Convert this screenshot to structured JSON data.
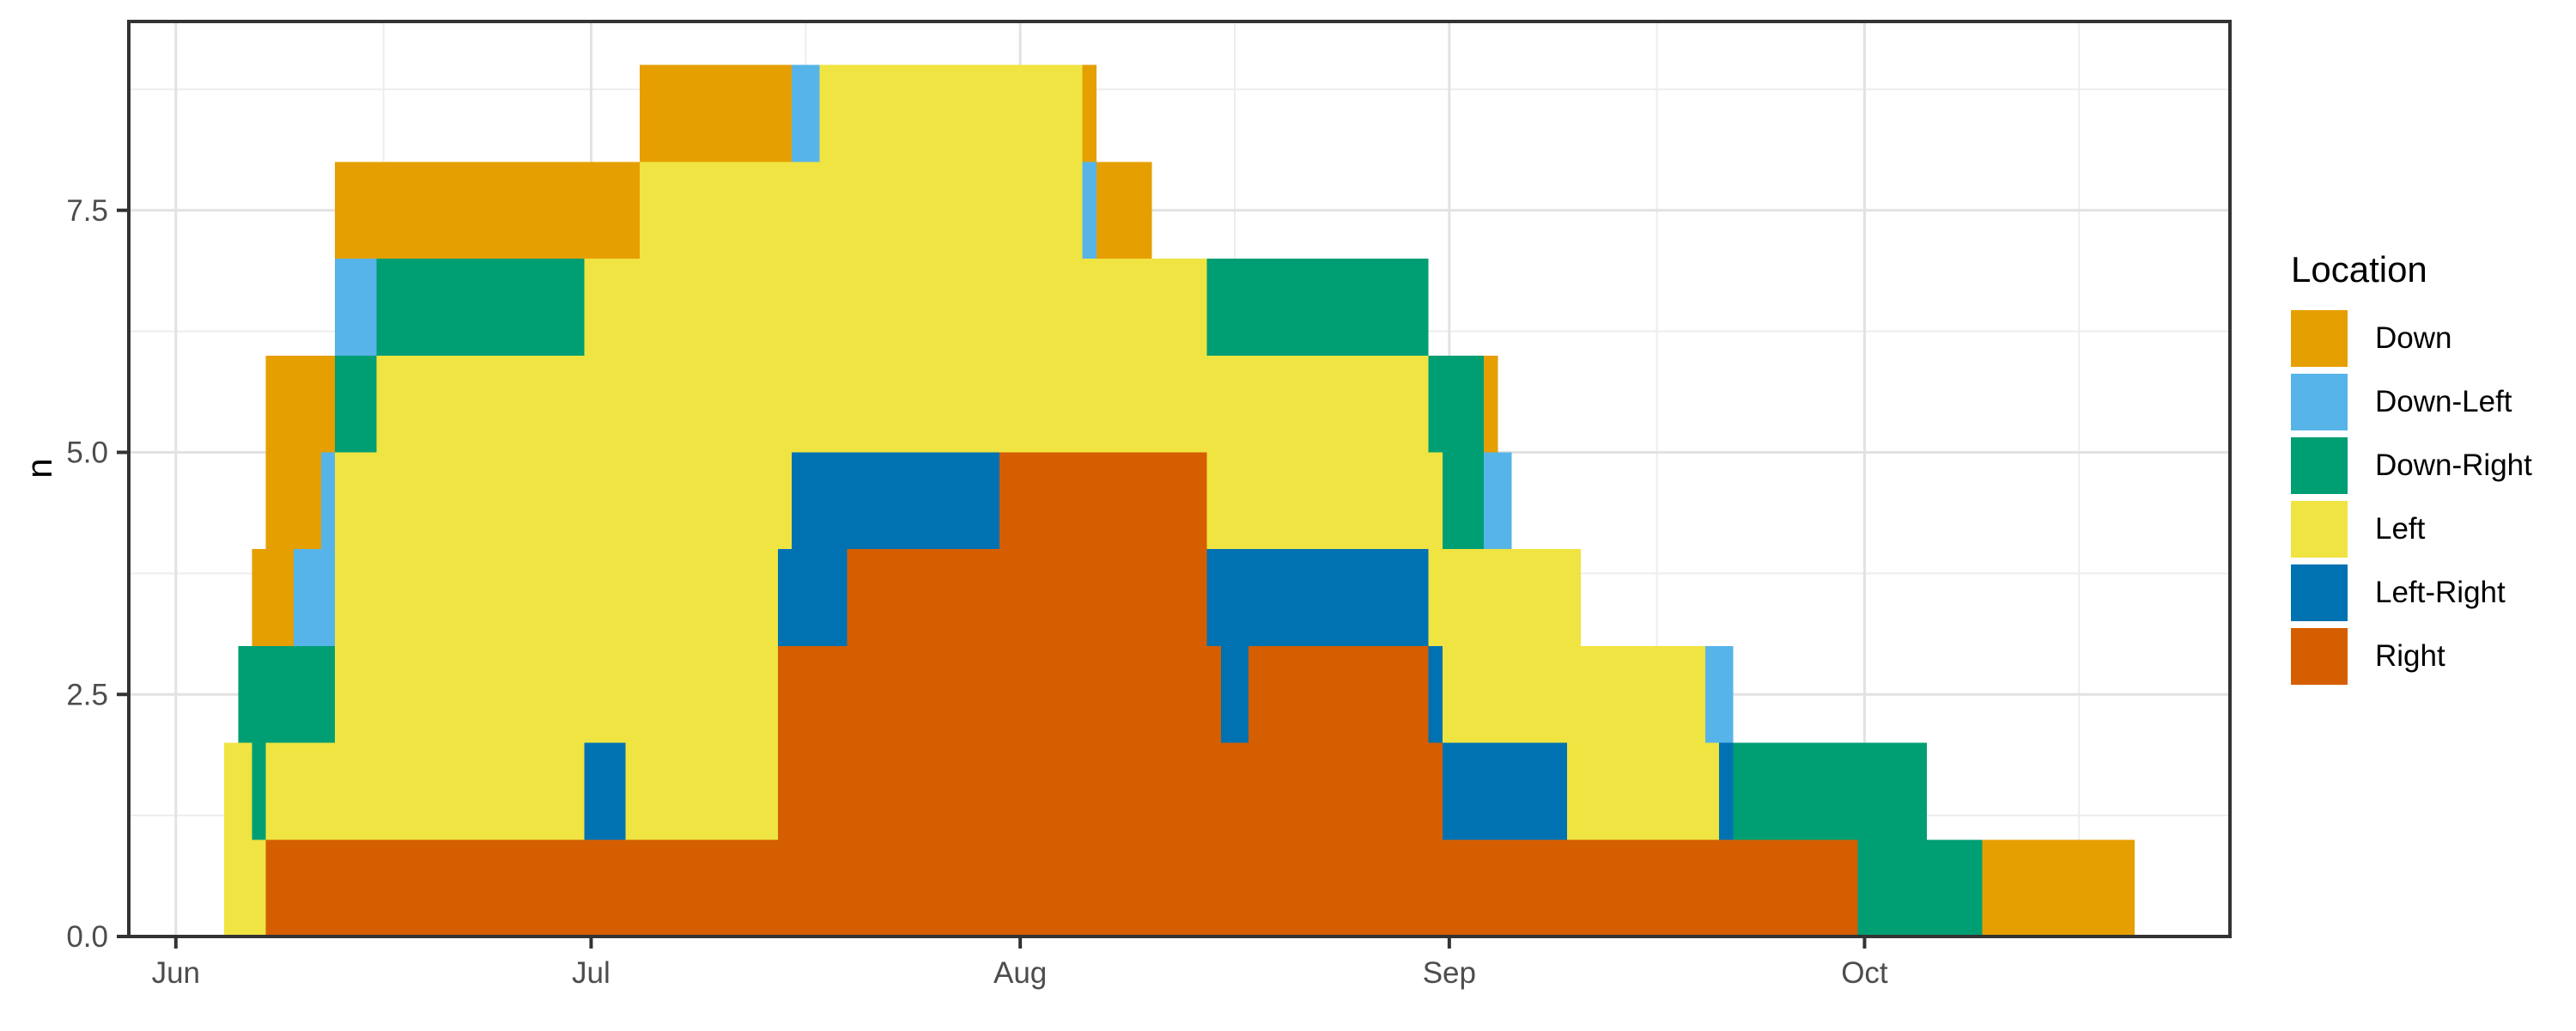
{
  "chart_data": {
    "type": "bar",
    "subtype": "stacked-time-columns",
    "title": "",
    "xlabel": "",
    "ylabel": "n",
    "legend_title": "Location",
    "legend_position": "right",
    "grid": true,
    "categories_legend_order": [
      "Down",
      "Down-Left",
      "Down-Right",
      "Left",
      "Left-Right",
      "Right"
    ],
    "stack_order_bottom_to_top": [
      "Right",
      "Left-Right",
      "Left",
      "Down-Right",
      "Down-Left",
      "Down"
    ],
    "colors": {
      "Down": "#E69F00",
      "Down-Left": "#56B4E9",
      "Down-Right": "#009E73",
      "Left": "#F0E442",
      "Left-Right": "#0072B2",
      "Right": "#D55E00"
    },
    "axis_text_color": "#4D4D4D",
    "axis_title_color": "#000000",
    "grid_major_color": "#E2E2E2",
    "grid_minor_color": "#EDEDED",
    "panel_border_color": "#333333",
    "panel_background": "#FFFFFF",
    "y_domain": [
      0,
      9.45
    ],
    "y_major_ticks": [
      {
        "value": 0,
        "label": "0.0"
      },
      {
        "value": 2.5,
        "label": "2.5"
      },
      {
        "value": 5,
        "label": "5.0"
      },
      {
        "value": 7.5,
        "label": "7.5"
      }
    ],
    "y_minor_breaks": [
      1.25,
      3.75,
      6.25,
      8.75
    ],
    "x_unit": "days_since_jun_1",
    "x_domain": [
      -3.4,
      148.4
    ],
    "x_major_ticks": [
      {
        "day": 0,
        "label": "Jun"
      },
      {
        "day": 30,
        "label": "Jul"
      },
      {
        "day": 61,
        "label": "Aug"
      },
      {
        "day": 92,
        "label": "Sep"
      },
      {
        "day": 122,
        "label": "Oct"
      }
    ],
    "x_minor_breaks": [
      15,
      45.5,
      76.5,
      107,
      137.5
    ],
    "segment_columns": [
      "start_day",
      "end_day",
      "Right",
      "Left-Right",
      "Left",
      "Down-Right",
      "Down-Left",
      "Down"
    ],
    "segments": [
      [
        3.5,
        4.5,
        0,
        0,
        2,
        0,
        0,
        0
      ],
      [
        4.5,
        5.5,
        0,
        0,
        2,
        1,
        0,
        0
      ],
      [
        5.5,
        6.5,
        0,
        0,
        1,
        2,
        0,
        1
      ],
      [
        6.5,
        8.5,
        1,
        0,
        1,
        1,
        0,
        3
      ],
      [
        8.5,
        10.5,
        1,
        0,
        1,
        1,
        1,
        2
      ],
      [
        10.5,
        11.5,
        1,
        0,
        1,
        1,
        2,
        1
      ],
      [
        11.5,
        14.5,
        1,
        0,
        4,
        1,
        1,
        1
      ],
      [
        14.5,
        29.5,
        1,
        0,
        5,
        1,
        0,
        1
      ],
      [
        29.5,
        32.5,
        1,
        1,
        5,
        0,
        0,
        1
      ],
      [
        32.5,
        33.5,
        1,
        0,
        6,
        0,
        0,
        1
      ],
      [
        33.5,
        43.5,
        1,
        0,
        7,
        0,
        0,
        1
      ],
      [
        43.5,
        44.5,
        3,
        1,
        4,
        0,
        0,
        1
      ],
      [
        44.5,
        46.5,
        3,
        2,
        3,
        0,
        1,
        0
      ],
      [
        46.5,
        48.5,
        3,
        2,
        4,
        0,
        0,
        0
      ],
      [
        48.5,
        59.5,
        4,
        1,
        4,
        0,
        0,
        0
      ],
      [
        59.5,
        65.5,
        5,
        0,
        4,
        0,
        0,
        0
      ],
      [
        65.5,
        66.5,
        5,
        0,
        2,
        0,
        1,
        1
      ],
      [
        66.5,
        70.5,
        5,
        0,
        2,
        0,
        0,
        1
      ],
      [
        70.5,
        74.5,
        5,
        0,
        2,
        0,
        0,
        0
      ],
      [
        74.5,
        75.5,
        3,
        1,
        2,
        1,
        0,
        0
      ],
      [
        75.5,
        77.5,
        2,
        2,
        2,
        1,
        0,
        0
      ],
      [
        77.5,
        90.5,
        3,
        1,
        2,
        1,
        0,
        0
      ],
      [
        90.5,
        91.5,
        2,
        1,
        2,
        1,
        0,
        0
      ],
      [
        91.5,
        94.5,
        1,
        1,
        2,
        2,
        0,
        0
      ],
      [
        94.5,
        95.5,
        1,
        1,
        2,
        0,
        1,
        1
      ],
      [
        95.5,
        96.5,
        1,
        1,
        2,
        0,
        1,
        0
      ],
      [
        96.5,
        100.5,
        1,
        1,
        2,
        0,
        0,
        0
      ],
      [
        100.5,
        101.5,
        1,
        0,
        3,
        0,
        0,
        0
      ],
      [
        101.5,
        110.5,
        1,
        0,
        2,
        0,
        0,
        0
      ],
      [
        110.5,
        111.5,
        1,
        0,
        1,
        0,
        1,
        0
      ],
      [
        111.5,
        112.5,
        1,
        1,
        0,
        0,
        1,
        0
      ],
      [
        112.5,
        121.5,
        1,
        0,
        0,
        1,
        0,
        0
      ],
      [
        121.5,
        126.5,
        0,
        0,
        0,
        2,
        0,
        0
      ],
      [
        126.5,
        130.5,
        0,
        0,
        0,
        1,
        0,
        0
      ],
      [
        130.5,
        141.5,
        0,
        0,
        0,
        0,
        0,
        1
      ]
    ]
  }
}
